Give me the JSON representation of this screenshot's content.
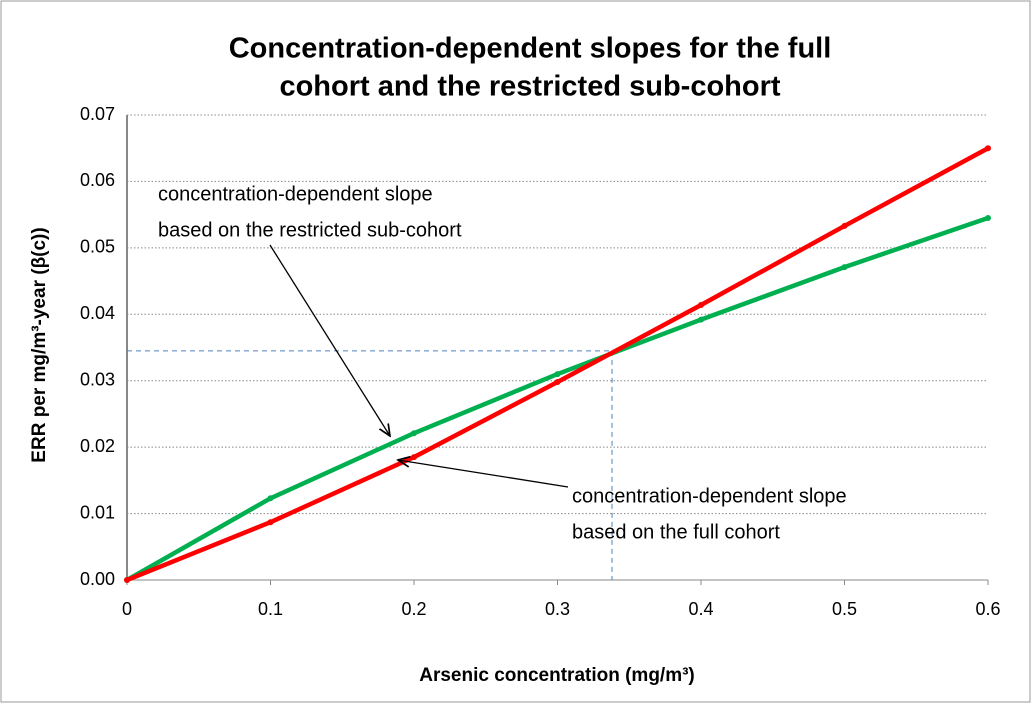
{
  "chart_data": {
    "type": "line",
    "title": [
      "Concentration-dependent slopes for the full",
      "cohort and the restricted sub-cohort"
    ],
    "x_label": "Arsenic concentration  (mg/m³)",
    "y_label": "ERR per mg/m³-year  (β(c))",
    "x": [
      0,
      0.1,
      0.2,
      0.3,
      0.4,
      0.5,
      0.6
    ],
    "series": [
      {
        "name": "concentration-dependent slope based on the restricted sub-cohort",
        "color": "#00b050",
        "values": [
          0,
          0.0123,
          0.0221,
          0.031,
          0.0392,
          0.0471,
          0.0545
        ]
      },
      {
        "name": "concentration-dependent slope based on the full cohort",
        "color": "#ff0000",
        "values": [
          0,
          0.0087,
          0.0185,
          0.0298,
          0.0414,
          0.0533,
          0.065
        ]
      }
    ],
    "annotations": [
      [
        "concentration-dependent slope",
        "based on the restricted sub-cohort"
      ],
      [
        "concentration-dependent slope",
        "based on the full cohort"
      ]
    ],
    "crossover": {
      "x": 0.338,
      "y": 0.0345
    },
    "xlim": [
      0,
      0.6
    ],
    "xticks": [
      0,
      0.1,
      0.2,
      0.3,
      0.4,
      0.5,
      0.6
    ],
    "ylim": [
      0,
      0.07
    ],
    "yticks": [
      {
        "value": 0,
        "label": "0.00"
      },
      {
        "value": 0.01,
        "label": "0.01"
      },
      {
        "value": 0.02,
        "label": "0.02"
      },
      {
        "value": 0.03,
        "label": "0.03"
      },
      {
        "value": 0.04,
        "label": "0.04"
      },
      {
        "value": 0.05,
        "label": "0.05"
      },
      {
        "value": 0.06,
        "label": "0.06"
      },
      {
        "value": 0.07,
        "label": "0.07"
      }
    ],
    "grid": true
  }
}
